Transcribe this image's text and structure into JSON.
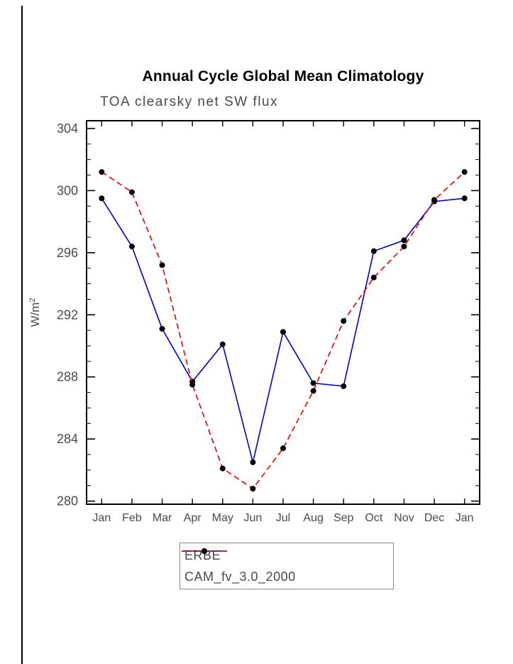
{
  "title": "Annual Cycle Global Mean Climatology",
  "subtitle": "TOA clearsky net SW flux",
  "chart_data": {
    "type": "line",
    "x_categories": [
      "Jan",
      "Feb",
      "Mar",
      "Apr",
      "May",
      "Jun",
      "Jul",
      "Aug",
      "Sep",
      "Oct",
      "Nov",
      "Dec",
      "Jan"
    ],
    "ylabel_base": "W/m",
    "ylabel_exp": "2",
    "ylim": [
      280,
      304
    ],
    "ytick_interval": 4,
    "yminor_interval": 1,
    "ytick_labels": [
      "280",
      "284",
      "288",
      "292",
      "296",
      "300",
      "304"
    ],
    "grid": false,
    "legend_position": "bottom",
    "frame_color": "#000000",
    "axis_text_color": "#4a4a4a",
    "series": [
      {
        "name": "ERBE",
        "color": "#0000cc",
        "dash": "solid",
        "marker_color": "#000000",
        "values": [
          299.5,
          296.4,
          291.1,
          287.7,
          290.1,
          282.5,
          290.9,
          287.6,
          287.4,
          296.1,
          296.8,
          299.3,
          299.5
        ]
      },
      {
        "name": "CAM_fv_3.0_2000",
        "color": "#dd0000",
        "dash": "dashed",
        "marker_color": "#000000",
        "values": [
          301.2,
          299.9,
          295.2,
          287.5,
          282.1,
          280.8,
          283.4,
          287.1,
          291.6,
          294.4,
          296.4,
          299.4,
          301.2
        ]
      }
    ]
  }
}
